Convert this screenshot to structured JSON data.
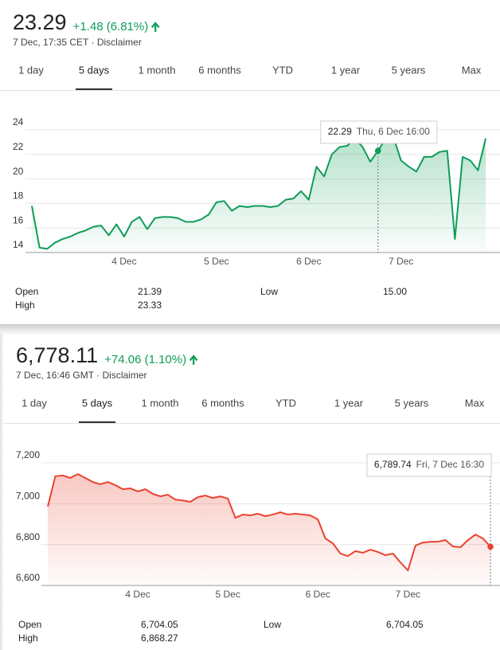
{
  "chart_data": [
    {
      "type": "line",
      "price": "23.29",
      "change": "+1.48 (6.81%)",
      "subline": "7 Dec, 17:35 CET · Disclaimer",
      "tabs": [
        "1 day",
        "5 days",
        "1 month",
        "6 months",
        "YTD",
        "1 year",
        "5 years",
        "Max"
      ],
      "color": "#0f9d58",
      "values": [
        17.8,
        14.4,
        14.3,
        14.8,
        15.1,
        15.3,
        15.6,
        15.8,
        16.1,
        16.2,
        15.4,
        16.3,
        15.3,
        16.5,
        16.9,
        15.9,
        16.8,
        16.9,
        16.9,
        16.8,
        16.5,
        16.5,
        16.7,
        17.1,
        18.1,
        18.2,
        17.4,
        17.8,
        17.7,
        17.8,
        17.8,
        17.7,
        17.8,
        18.3,
        18.4,
        19.0,
        18.3,
        21.0,
        20.2,
        22.0,
        22.6,
        22.7,
        23.3,
        22.6,
        21.4,
        22.29,
        23.3,
        23.4,
        21.5,
        21.0,
        20.6,
        21.8,
        21.8,
        22.2,
        22.3,
        15.1,
        21.8,
        21.5,
        20.7,
        23.3
      ],
      "xlim": [
        0,
        59
      ],
      "xticks": [
        {
          "value": 12,
          "label": "4 Dec"
        },
        {
          "value": 24,
          "label": "5 Dec"
        },
        {
          "value": 36,
          "label": "6 Dec"
        },
        {
          "value": 48,
          "label": "7 Dec"
        }
      ],
      "ylim": [
        14,
        24
      ],
      "yticks": [
        14,
        16,
        18,
        20,
        22,
        24
      ],
      "grid": true,
      "tooltip": {
        "label": "22.29",
        "date": "Thu, 6 Dec 16:00"
      },
      "stats": [
        {
          "label": "Open",
          "value": "21.39"
        },
        {
          "label": "High",
          "value": "23.33"
        },
        {
          "label": "Low",
          "value": "15.00"
        }
      ]
    },
    {
      "type": "line",
      "price": "6,778.11",
      "change": "+74.06 (1.10%)",
      "subline": "7 Dec, 16:46 GMT · Disclaimer",
      "tabs": [
        "1 day",
        "5 days",
        "1 month",
        "6 months",
        "YTD",
        "1 year",
        "5 years",
        "Max"
      ],
      "color": "#e8432f",
      "values": [
        6986,
        7134,
        7138,
        7126,
        7145,
        7126,
        7106,
        7095,
        7106,
        7091,
        7071,
        7075,
        7060,
        7071,
        7048,
        7036,
        7044,
        7020,
        7016,
        7009,
        7032,
        7040,
        7028,
        7036,
        7025,
        6931,
        6947,
        6943,
        6951,
        6939,
        6947,
        6958,
        6947,
        6951,
        6947,
        6943,
        6923,
        6830,
        6806,
        6756,
        6744,
        6768,
        6760,
        6775,
        6764,
        6748,
        6756,
        6713,
        6674,
        6795,
        6810,
        6814,
        6814,
        6822,
        6791,
        6787,
        6822,
        6849,
        6830,
        6789.74
      ],
      "xlim": [
        0,
        59
      ],
      "xticks": [
        {
          "value": 12,
          "label": "4 Dec"
        },
        {
          "value": 24,
          "label": "5 Dec"
        },
        {
          "value": 36,
          "label": "6 Dec"
        },
        {
          "value": 48,
          "label": "7 Dec"
        }
      ],
      "ylim": [
        6600,
        7200
      ],
      "yticks": [
        {
          "value": 6600,
          "label": "6,600"
        },
        {
          "value": 6800,
          "label": "6,800"
        },
        {
          "value": 7000,
          "label": "7,000"
        },
        {
          "value": 7200,
          "label": "7,200"
        }
      ],
      "grid": true,
      "tooltip": {
        "label": "6,789.74",
        "date": "Fri, 7 Dec 16:30"
      },
      "stats": [
        {
          "label": "Open",
          "value": "6,704.05"
        },
        {
          "label": "High",
          "value": "6,868.27"
        },
        {
          "label": "Low",
          "value": "6,704.05"
        }
      ]
    }
  ]
}
